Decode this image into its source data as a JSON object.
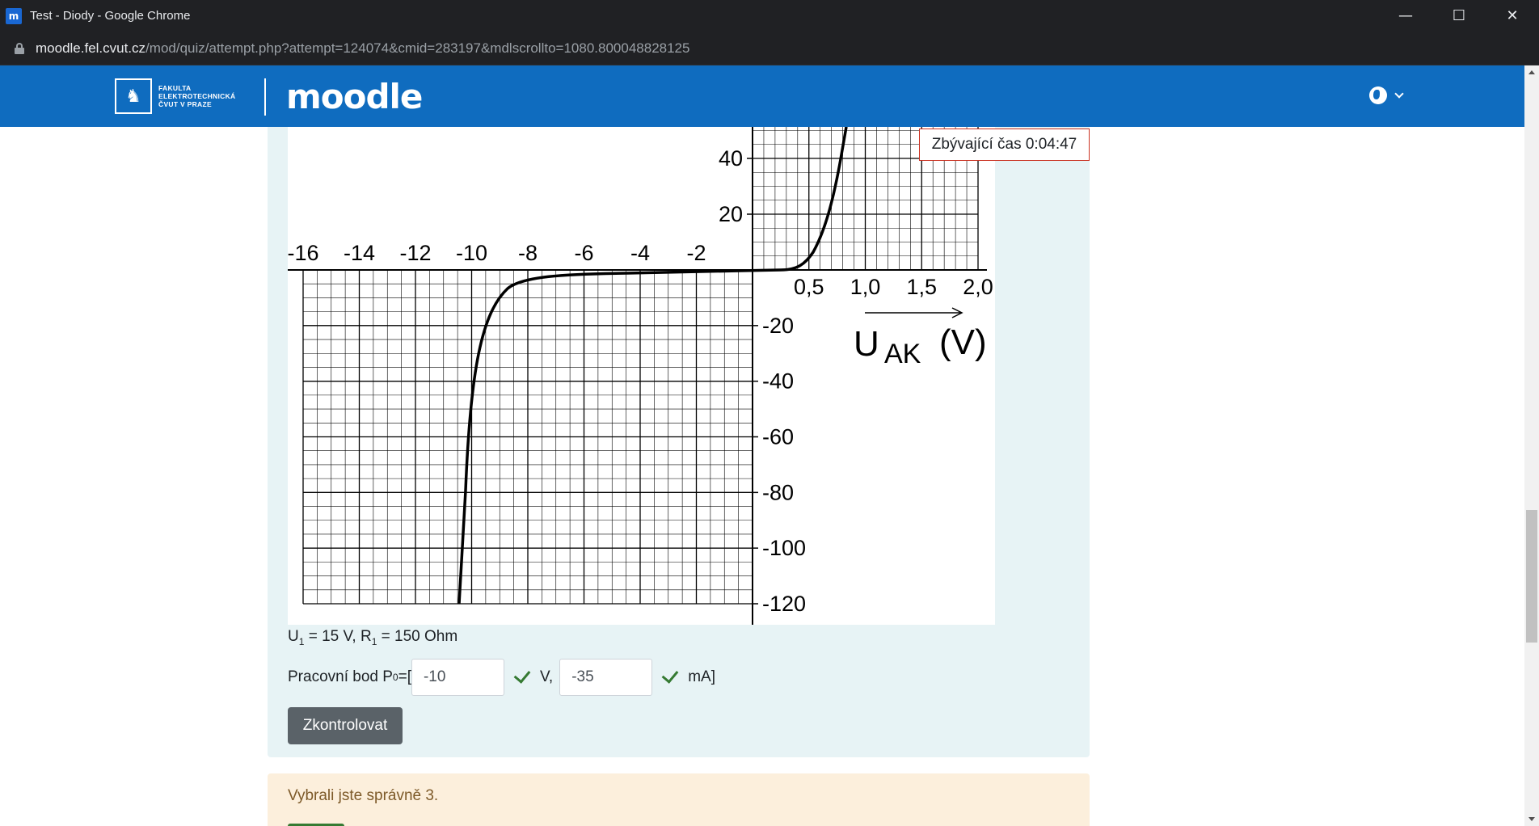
{
  "browser": {
    "tab_title": "Test - Diody - Google Chrome",
    "favicon_text": "m",
    "url_host": "moodle.fel.cvut.cz",
    "url_path": "/mod/quiz/attempt.php?attempt=124074&cmid=283197&mdlscrollto=1080.800048828125",
    "minimize": "—",
    "maximize": "☐",
    "close": "✕"
  },
  "navbar": {
    "fel_line1": "FAKULTA",
    "fel_line2": "ELEKTROTECHNICKÁ",
    "fel_line3": "ČVUT V PRAZE",
    "brand": "moodle",
    "colors": {
      "navbar_bg": "#0f6cbf"
    }
  },
  "timer": {
    "text": "Zbývající čas 0:04:47"
  },
  "graph": {
    "x_ticks_negative": [
      "-16",
      "-14",
      "-12",
      "-10",
      "-8",
      "-6",
      "-4",
      "-2"
    ],
    "x_ticks_positive": [
      "0,5",
      "1,0",
      "1,5",
      "2,0"
    ],
    "y_ticks_positive": [
      "40",
      "20"
    ],
    "y_ticks_negative": [
      "-20",
      "-40",
      "-60",
      "-80",
      "-100",
      "-120"
    ],
    "x_axis_label_main": "U",
    "x_axis_label_sub": "AK",
    "x_axis_label_unit": "(V)"
  },
  "question": {
    "params_u": "U",
    "params_u_sub": "1",
    "params_u_rest": " = 15 V, R",
    "params_r_sub": "1",
    "params_r_rest": " = 150 Ohm",
    "work_label_pre": "Pracovní bod P",
    "work_label_sub": "0",
    "work_label_post": "=[",
    "voltage_value": "-10",
    "voltage_unit": "V,",
    "current_value": "-35",
    "current_unit": "mA]",
    "check_button": "Zkontrolovat"
  },
  "feedback": {
    "text": "Vybrali jste správně 3."
  }
}
